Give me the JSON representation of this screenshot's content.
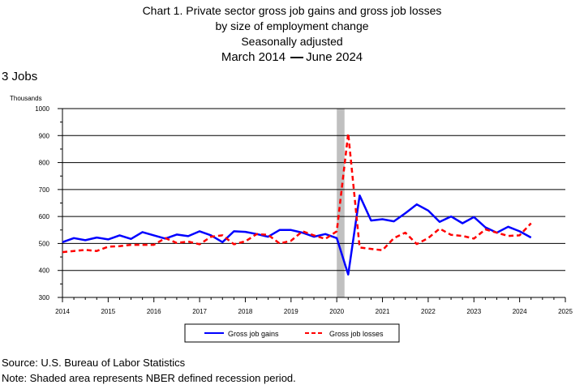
{
  "title": {
    "line1": "Chart 1. Private sector gross job gains and gross job losses",
    "line2": "by size of employment change",
    "line3": "Seasonally adjusted",
    "period_start": "March 2014",
    "period_end": "June 2024"
  },
  "panel_label": "3 Jobs",
  "footer": {
    "source": "Source: U.S. Bureau of Labor Statistics",
    "note": "Note: Shaded area represents NBER defined recession period."
  },
  "colors": {
    "gains": "#0000ff",
    "losses": "#ff0000",
    "recession": "#c0c0c0"
  },
  "chart_data": {
    "type": "line",
    "ylabel": "Thousands",
    "ylim": [
      300,
      1000
    ],
    "xlim": [
      2014,
      2025
    ],
    "y_ticks": [
      300,
      400,
      500,
      600,
      700,
      800,
      900,
      1000
    ],
    "x_ticks": [
      2014,
      2015,
      2016,
      2017,
      2018,
      2019,
      2020,
      2021,
      2022,
      2023,
      2024,
      2025
    ],
    "grid": "horizontal",
    "legend_position": "bottom",
    "recession": {
      "start": 2020.0,
      "end": 2020.17
    },
    "series": [
      {
        "name": "Gross job gains",
        "color": "#0000ff",
        "style": "solid",
        "x": [
          2014.0,
          2014.25,
          2014.5,
          2014.75,
          2015.0,
          2015.25,
          2015.5,
          2015.75,
          2016.0,
          2016.25,
          2016.5,
          2016.75,
          2017.0,
          2017.25,
          2017.5,
          2017.75,
          2018.0,
          2018.25,
          2018.5,
          2018.75,
          2019.0,
          2019.25,
          2019.5,
          2019.75,
          2020.0,
          2020.25,
          2020.5,
          2020.75,
          2021.0,
          2021.25,
          2021.5,
          2021.75,
          2022.0,
          2022.25,
          2022.5,
          2022.75,
          2023.0,
          2023.25,
          2023.5,
          2023.75,
          2024.0,
          2024.25
        ],
        "values": [
          505,
          520,
          512,
          522,
          515,
          530,
          517,
          542,
          530,
          518,
          533,
          527,
          545,
          530,
          505,
          545,
          543,
          535,
          525,
          550,
          550,
          540,
          525,
          535,
          520,
          385,
          678,
          585,
          590,
          582,
          612,
          645,
          622,
          580,
          600,
          575,
          598,
          560,
          540,
          562,
          545,
          522
        ]
      },
      {
        "name": "Gross job losses",
        "color": "#ff0000",
        "style": "dashed",
        "x": [
          2014.0,
          2014.25,
          2014.5,
          2014.75,
          2015.0,
          2015.25,
          2015.5,
          2015.75,
          2016.0,
          2016.25,
          2016.5,
          2016.75,
          2017.0,
          2017.25,
          2017.5,
          2017.75,
          2018.0,
          2018.25,
          2018.5,
          2018.75,
          2019.0,
          2019.25,
          2019.5,
          2019.75,
          2020.0,
          2020.25,
          2020.5,
          2020.75,
          2021.0,
          2021.25,
          2021.5,
          2021.75,
          2022.0,
          2022.25,
          2022.5,
          2022.75,
          2023.0,
          2023.25,
          2023.5,
          2023.75,
          2024.0,
          2024.25
        ],
        "values": [
          468,
          472,
          476,
          472,
          488,
          490,
          495,
          495,
          495,
          520,
          502,
          507,
          497,
          525,
          530,
          497,
          508,
          535,
          532,
          500,
          510,
          545,
          530,
          517,
          545,
          908,
          485,
          480,
          475,
          520,
          540,
          498,
          520,
          555,
          532,
          528,
          518,
          552,
          540,
          528,
          530,
          575
        ]
      }
    ]
  }
}
